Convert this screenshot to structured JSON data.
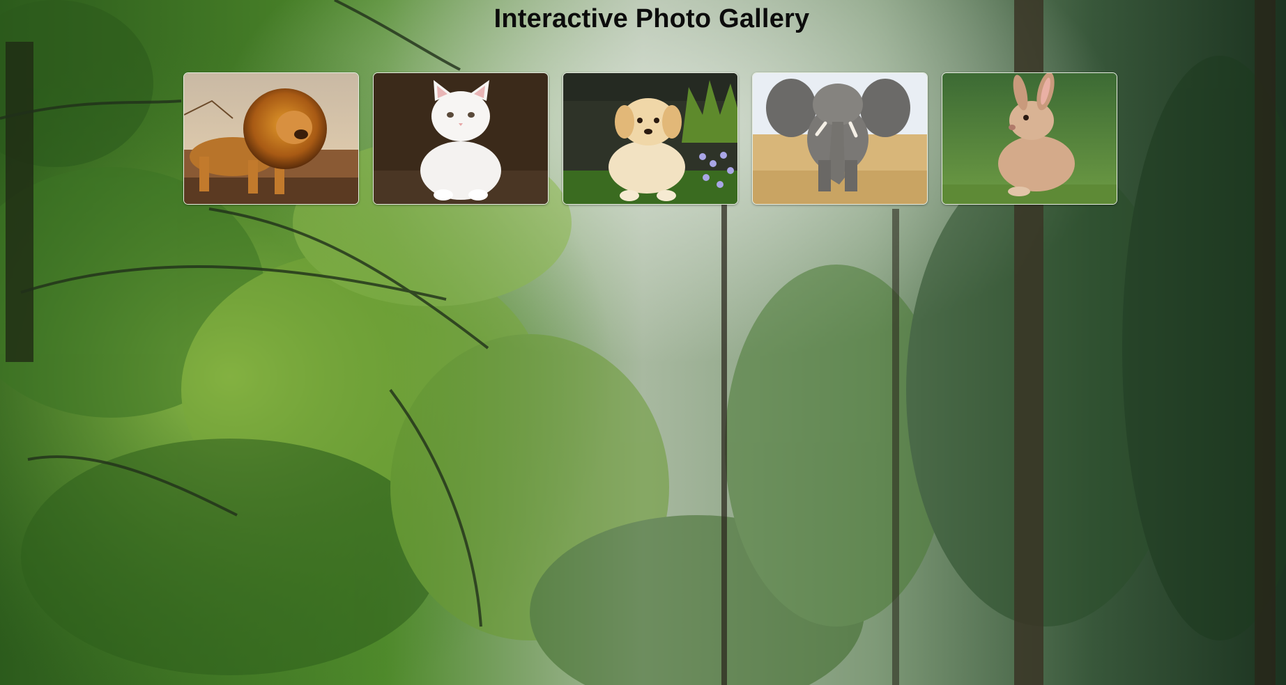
{
  "page": {
    "title": "Interactive Photo Gallery"
  },
  "background": {
    "description_icon": "forest-background-image"
  },
  "gallery": {
    "photos": [
      {
        "icon": "lion-photo",
        "subject": "lion"
      },
      {
        "icon": "white-kitten-photo",
        "subject": "kitten"
      },
      {
        "icon": "golden-puppy-photo",
        "subject": "puppy"
      },
      {
        "icon": "elephant-photo",
        "subject": "elephant"
      },
      {
        "icon": "rabbit-photo",
        "subject": "rabbit"
      }
    ]
  },
  "colors": {
    "title": "#0c0c0c",
    "thumb_border": "#e8efe2",
    "forest_dark": "#1f3d16",
    "forest_light": "#8fbf4a",
    "mist": "#c9d2c6"
  }
}
